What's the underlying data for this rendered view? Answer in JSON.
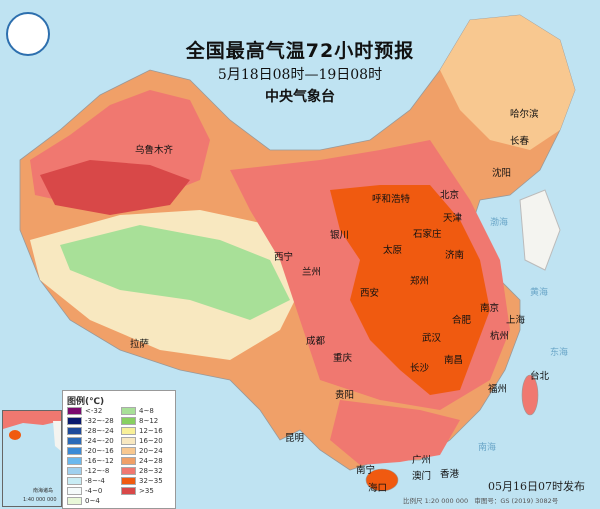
{
  "header": {
    "title": "全国最高气温72小时预报",
    "period": "5月18日08时—19日08时",
    "issuer": "中央气象台",
    "logo_icon": "cma-logo"
  },
  "cities": [
    "乌鲁木齐",
    "哈尔滨",
    "长春",
    "沈阳",
    "呼和浩特",
    "北京",
    "天津",
    "石家庄",
    "太原",
    "济南",
    "银川",
    "西宁",
    "兰州",
    "西安",
    "郑州",
    "南京",
    "合肥",
    "上海",
    "杭州",
    "武汉",
    "成都",
    "重庆",
    "长沙",
    "南昌",
    "拉萨",
    "贵阳",
    "昆明",
    "福州",
    "台北",
    "南宁",
    "广州",
    "香港",
    "澳门",
    "海口"
  ],
  "seas": [
    "渤海",
    "黄海",
    "东海",
    "南海"
  ],
  "legend": {
    "title": "图例(℃)",
    "items": [
      {
        "label": "<-32",
        "color": "#7a0a6e"
      },
      {
        "label": "-32~-28",
        "color": "#0a1a6e"
      },
      {
        "label": "-28~-24",
        "color": "#1e4a9a"
      },
      {
        "label": "-24~-20",
        "color": "#2a6ab8"
      },
      {
        "label": "-20~-16",
        "color": "#3a8ad6"
      },
      {
        "label": "-16~-12",
        "color": "#6ab8ee"
      },
      {
        "label": "-12~-8",
        "color": "#a0d0ee"
      },
      {
        "label": "-8~-4",
        "color": "#c8ecf4"
      },
      {
        "label": "-4~0",
        "color": "#f4fafa"
      },
      {
        "label": "0~4",
        "color": "#e8f8d8"
      },
      {
        "label": "4~8",
        "color": "#a8e098"
      },
      {
        "label": "8~12",
        "color": "#88d060"
      },
      {
        "label": "12~16",
        "color": "#f8f098"
      },
      {
        "label": "16~20",
        "color": "#f8e8c0"
      },
      {
        "label": "20~24",
        "color": "#f8c890"
      },
      {
        "label": "24~28",
        "color": "#f0a068"
      },
      {
        "label": "28~32",
        "color": "#f07870"
      },
      {
        "label": "32~35",
        "color": "#f05a10"
      },
      {
        "label": ">35",
        "color": "#d84848"
      }
    ]
  },
  "inset": {
    "label": "南海诸岛",
    "scale": "1:40 000 000"
  },
  "footer": {
    "published": "05月16日07时发布",
    "scale": "比例尺 1:20 000 000",
    "map_approval": "审图号：GS (2019) 3082号"
  }
}
